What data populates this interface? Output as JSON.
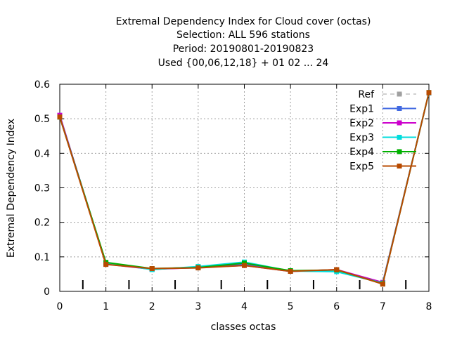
{
  "chart_data": {
    "type": "line",
    "title_lines": [
      "Extremal Dependency Index  for Cloud cover (octas)",
      "Selection: ALL    596 stations",
      "Period: 20190801-20190823",
      "Used {00,06,12,18} + 01 02 ... 24"
    ],
    "xlabel": "classes octas",
    "ylabel": "Extremal Dependency Index",
    "xlim": [
      0,
      8
    ],
    "ylim": [
      0,
      0.6
    ],
    "x_ticks": [
      "0",
      "1",
      "2",
      "3",
      "4",
      "5",
      "6",
      "7",
      "8"
    ],
    "y_ticks": [
      "0",
      "0.1",
      "0.2",
      "0.3",
      "0.4",
      "0.5",
      "0.6"
    ],
    "grid": true,
    "legend_position": "top-right",
    "x": [
      0,
      1,
      2,
      3,
      4,
      5,
      6,
      7,
      8
    ],
    "series": [
      {
        "name": "Ref",
        "color": "#a0a0a0",
        "dashed": true,
        "values": [
          null,
          null,
          null,
          null,
          null,
          null,
          null,
          null,
          null
        ]
      },
      {
        "name": "Exp1",
        "color": "#4169e1",
        "dashed": false,
        "values": [
          0.51,
          0.08,
          0.065,
          0.07,
          0.078,
          0.058,
          0.062,
          0.025,
          0.575
        ]
      },
      {
        "name": "Exp2",
        "color": "#cc00cc",
        "dashed": false,
        "values": [
          0.51,
          0.079,
          0.064,
          0.069,
          0.075,
          0.058,
          0.063,
          0.026,
          0.575
        ]
      },
      {
        "name": "Exp3",
        "color": "#00dddd",
        "dashed": false,
        "values": [
          0.505,
          0.083,
          0.063,
          0.072,
          0.085,
          0.059,
          0.057,
          0.024,
          0.575
        ]
      },
      {
        "name": "Exp4",
        "color": "#00b000",
        "dashed": false,
        "values": [
          0.505,
          0.084,
          0.066,
          0.069,
          0.082,
          0.06,
          0.062,
          0.022,
          0.576
        ]
      },
      {
        "name": "Exp5",
        "color": "#b84a00",
        "dashed": false,
        "values": [
          0.505,
          0.078,
          0.066,
          0.068,
          0.075,
          0.058,
          0.063,
          0.021,
          0.576
        ]
      }
    ],
    "bottom_marks_x": [
      0.5,
      1.5,
      2.5,
      3.5,
      4.5,
      5.5,
      6.5,
      7.5
    ]
  }
}
